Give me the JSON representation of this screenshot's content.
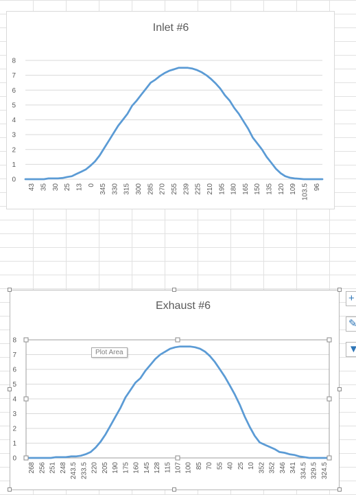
{
  "ui": {
    "tooltip": "Plot Area",
    "icons": [
      "add-chart-element-icon",
      "chart-styles-icon",
      "chart-filters-icon"
    ]
  },
  "colors": {
    "series": "#5b9bd5",
    "grid": "#d9d9d9",
    "text": "#595959",
    "sheet_grid": "#e1e1e1"
  },
  "chart_data": [
    {
      "type": "line",
      "title": "Inlet #6",
      "xlabel": "",
      "ylabel": "",
      "ylim": [
        0,
        8
      ],
      "grid": true,
      "y_ticks": [
        0,
        1,
        2,
        3,
        4,
        5,
        6,
        7,
        8
      ],
      "x_tick_labels": [
        "43",
        "35",
        "30",
        "25",
        "13",
        "0",
        "345",
        "330",
        "315",
        "300",
        "285",
        "270",
        "255",
        "239",
        "225",
        "210",
        "195",
        "180",
        "165",
        "150",
        "135",
        "120",
        "109",
        "103.5",
        "96"
      ],
      "series": [
        {
          "values": [
            0.0,
            0.0,
            0.0,
            0.0,
            0.0,
            0.05,
            0.05,
            0.05,
            0.08,
            0.15,
            0.2,
            0.35,
            0.5,
            0.65,
            0.9,
            1.2,
            1.6,
            2.1,
            2.6,
            3.1,
            3.6,
            4.0,
            4.4,
            4.95,
            5.3,
            5.7,
            6.1,
            6.5,
            6.7,
            6.95,
            7.15,
            7.3,
            7.4,
            7.5,
            7.5,
            7.5,
            7.45,
            7.35,
            7.2,
            7.0,
            6.75,
            6.45,
            6.1,
            5.65,
            5.3,
            4.8,
            4.4,
            3.9,
            3.4,
            2.8,
            2.4,
            2.0,
            1.5,
            1.1,
            0.7,
            0.4,
            0.2,
            0.1,
            0.05,
            0.03,
            0.0,
            0.0,
            0.0,
            0.0,
            0.0
          ]
        }
      ]
    },
    {
      "type": "line",
      "title": "Exhaust #6",
      "xlabel": "",
      "ylabel": "",
      "ylim": [
        0,
        8
      ],
      "grid": true,
      "y_ticks": [
        0,
        1,
        2,
        3,
        4,
        5,
        6,
        7,
        8
      ],
      "x_tick_labels": [
        "268",
        "256",
        "251",
        "248",
        "243.5",
        "233.5",
        "220",
        "205",
        "190",
        "175",
        "160",
        "145",
        "128",
        "115",
        "107",
        "100",
        "85",
        "70",
        "55",
        "40",
        "25",
        "10",
        "352",
        "352",
        "346",
        "341",
        "334.5",
        "329.5",
        "324.5"
      ],
      "series": [
        {
          "values": [
            0.0,
            0.0,
            0.0,
            0.0,
            0.0,
            0.0,
            0.05,
            0.05,
            0.05,
            0.1,
            0.1,
            0.15,
            0.25,
            0.4,
            0.7,
            1.1,
            1.6,
            2.2,
            2.8,
            3.4,
            4.1,
            4.6,
            5.1,
            5.4,
            5.9,
            6.3,
            6.7,
            7.0,
            7.2,
            7.4,
            7.5,
            7.55,
            7.55,
            7.55,
            7.5,
            7.4,
            7.2,
            6.9,
            6.5,
            6.0,
            5.5,
            4.9,
            4.3,
            3.6,
            2.8,
            2.1,
            1.5,
            1.05,
            0.9,
            0.75,
            0.6,
            0.4,
            0.35,
            0.25,
            0.2,
            0.1,
            0.05,
            0.0,
            0.0,
            0.0,
            0.0,
            0.0
          ]
        }
      ]
    }
  ]
}
